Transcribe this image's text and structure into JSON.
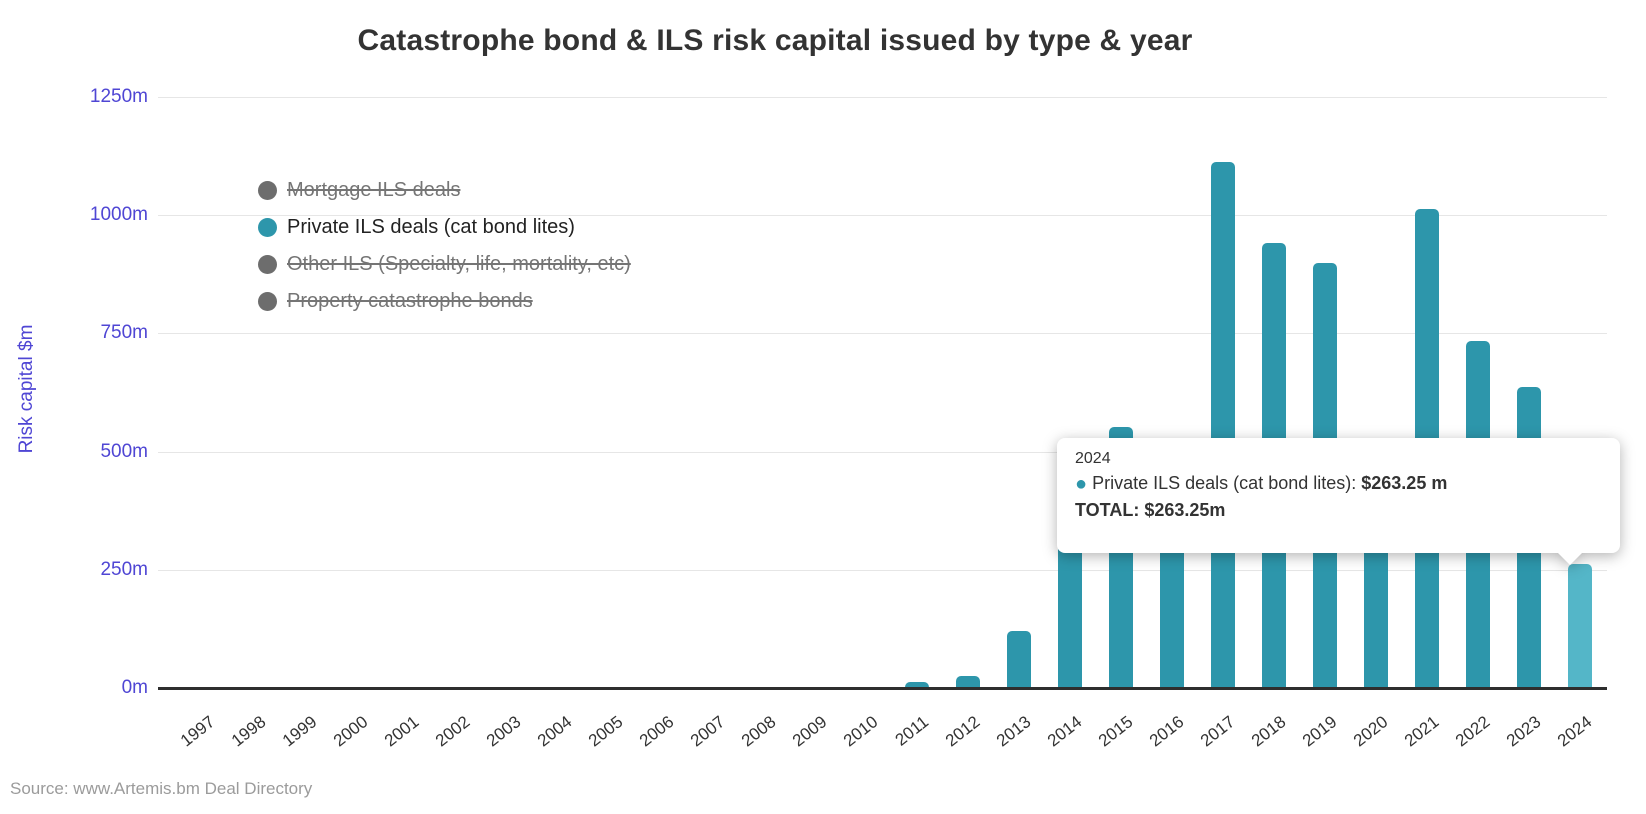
{
  "title": "Catastrophe bond & ILS risk capital issued by type & year",
  "source": "Source: www.Artemis.bm Deal Directory",
  "colors": {
    "bar": "#2d96ab",
    "bar_highlight": "#54b6c8",
    "y_axis_text": "#4f46d4",
    "gridline": "#e6e6e6",
    "axis_line": "#2e2e2e",
    "title_text": "#333333",
    "legend_disabled_text": "#757575",
    "legend_disabled_marker": "#6d6d6d",
    "source_text": "#9b9b9b",
    "tooltip_bg": "#ffffff"
  },
  "legend": {
    "items": [
      {
        "label": "Mortgage ILS deals",
        "disabled": true,
        "marker_color": "#6d6d6d"
      },
      {
        "label": "Private ILS deals (cat bond lites)",
        "disabled": false,
        "marker_color": "#2d96ab"
      },
      {
        "label": "Other ILS (Specialty, life, mortality, etc)",
        "disabled": true,
        "marker_color": "#6d6d6d"
      },
      {
        "label": "Property catastrophe bonds",
        "disabled": true,
        "marker_color": "#6d6d6d"
      }
    ]
  },
  "tooltip": {
    "year": "2024",
    "bullet": "●",
    "series_label": "Private ILS deals (cat bond lites)",
    "separator": ": ",
    "series_value": "$263.25 m",
    "total_text": "TOTAL: $263.25m"
  },
  "chart_data": {
    "type": "bar",
    "title": "Catastrophe bond & ILS risk capital issued by type & year",
    "xlabel": "",
    "ylabel": "Risk capital $m",
    "ylim": [
      0,
      1250
    ],
    "grid": true,
    "legend_position": "top-left-inside",
    "yticks": [
      {
        "value": 0,
        "label": "0m"
      },
      {
        "value": 250,
        "label": "250m"
      },
      {
        "value": 500,
        "label": "500m"
      },
      {
        "value": 750,
        "label": "750m"
      },
      {
        "value": 1000,
        "label": "1000m"
      },
      {
        "value": 1250,
        "label": "1250m"
      }
    ],
    "categories": [
      1997,
      1998,
      1999,
      2000,
      2001,
      2002,
      2003,
      2004,
      2005,
      2006,
      2007,
      2008,
      2009,
      2010,
      2011,
      2012,
      2013,
      2014,
      2015,
      2016,
      2017,
      2018,
      2019,
      2020,
      2021,
      2022,
      2023,
      2024
    ],
    "series": [
      {
        "name": "Private ILS deals (cat bond lites)",
        "values": [
          0,
          0,
          0,
          0,
          0,
          0,
          0,
          0,
          0,
          0,
          0,
          0,
          0,
          0,
          13,
          25,
          120,
          490,
          553,
          508,
          1113,
          941,
          899,
          432,
          1013,
          734,
          637,
          263.25
        ]
      }
    ],
    "highlight_category": 2024,
    "tooltip_point": {
      "category": 2024,
      "value": 263.25
    }
  }
}
